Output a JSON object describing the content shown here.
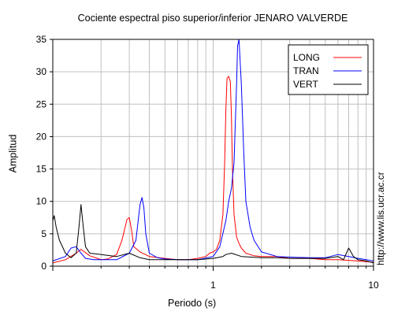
{
  "title": "Cociente espectral piso superior/inferior  JENARO VALVERDE",
  "watermark": "http://www.lis.ucr.ac.cr",
  "chart_data": {
    "type": "line",
    "title": "Cociente espectral piso superior/inferior  JENARO VALVERDE",
    "xlabel": "Periodo (s)",
    "ylabel": "Amplitud",
    "xscale": "log",
    "xlim": [
      0.1,
      10
    ],
    "ylim": [
      0,
      35
    ],
    "xticks": [
      "1",
      "10"
    ],
    "yticks": [
      "0",
      "5",
      "10",
      "15",
      "20",
      "25",
      "30",
      "35"
    ],
    "grid": true,
    "legend_position": "top-right",
    "series": [
      {
        "name": "LONG",
        "color": "#ff0000",
        "x": [
          0.1,
          0.12,
          0.14,
          0.15,
          0.17,
          0.19,
          0.2,
          0.22,
          0.25,
          0.27,
          0.29,
          0.3,
          0.31,
          0.32,
          0.35,
          0.4,
          0.5,
          0.6,
          0.7,
          0.8,
          0.9,
          0.95,
          1.0,
          1.05,
          1.1,
          1.15,
          1.18,
          1.2,
          1.22,
          1.25,
          1.28,
          1.3,
          1.32,
          1.35,
          1.4,
          1.45,
          1.5,
          1.6,
          1.8,
          2.0,
          2.5,
          3.0,
          4.0,
          5.0,
          6.0,
          7.0,
          8.0,
          9.0,
          10.0
        ],
        "values": [
          0.5,
          1.0,
          2.0,
          2.6,
          1.6,
          1.2,
          1.0,
          1.1,
          1.8,
          4.0,
          7.2,
          7.5,
          5.5,
          3.0,
          2.2,
          1.5,
          1.2,
          1.0,
          1.0,
          1.2,
          1.5,
          2.0,
          2.2,
          2.6,
          4.0,
          8.0,
          16.0,
          24.0,
          29.0,
          29.3,
          28.5,
          23.0,
          15.0,
          8.0,
          4.5,
          3.5,
          2.8,
          2.0,
          1.6,
          1.5,
          1.5,
          1.2,
          1.2,
          1.0,
          1.0,
          0.9,
          0.8,
          0.7,
          0.6
        ]
      },
      {
        "name": "TRAN",
        "color": "#0000ff",
        "x": [
          0.1,
          0.12,
          0.13,
          0.14,
          0.15,
          0.16,
          0.18,
          0.2,
          0.25,
          0.3,
          0.33,
          0.35,
          0.36,
          0.37,
          0.38,
          0.4,
          0.45,
          0.5,
          0.6,
          0.8,
          1.0,
          1.1,
          1.2,
          1.25,
          1.3,
          1.35,
          1.4,
          1.42,
          1.45,
          1.5,
          1.55,
          1.6,
          1.7,
          1.8,
          2.0,
          2.5,
          3.0,
          4.0,
          5.0,
          6.0,
          7.0,
          8.0,
          9.0,
          10.0
        ],
        "values": [
          0.8,
          1.5,
          2.8,
          3.0,
          2.0,
          1.2,
          1.0,
          1.0,
          1.0,
          2.0,
          4.0,
          9.5,
          10.6,
          9.0,
          5.0,
          2.0,
          1.3,
          1.1,
          1.0,
          1.0,
          1.5,
          3.0,
          7.0,
          10.0,
          12.0,
          16.0,
          28.0,
          34.0,
          35.0,
          28.0,
          18.0,
          10.0,
          6.0,
          4.0,
          2.2,
          1.5,
          1.4,
          1.3,
          1.3,
          1.8,
          1.5,
          1.2,
          1.0,
          0.8
        ]
      },
      {
        "name": "VERT",
        "color": "#000000",
        "x": [
          0.1,
          0.102,
          0.105,
          0.11,
          0.12,
          0.13,
          0.14,
          0.145,
          0.15,
          0.155,
          0.16,
          0.17,
          0.2,
          0.25,
          0.3,
          0.35,
          0.4,
          0.5,
          0.6,
          0.8,
          1.0,
          1.15,
          1.2,
          1.3,
          1.5,
          2.0,
          2.5,
          3.0,
          4.0,
          5.0,
          6.0,
          6.5,
          7.0,
          7.5,
          8.0,
          9.0,
          10.0
        ],
        "values": [
          7.0,
          7.8,
          6.0,
          4.0,
          2.0,
          1.3,
          2.0,
          5.5,
          9.5,
          6.0,
          3.0,
          2.0,
          1.8,
          1.5,
          2.0,
          1.3,
          1.0,
          1.0,
          1.0,
          1.0,
          1.2,
          1.5,
          1.8,
          2.0,
          1.5,
          1.3,
          1.3,
          1.2,
          1.2,
          1.2,
          1.5,
          1.0,
          2.8,
          1.5,
          1.0,
          0.8,
          0.5
        ]
      }
    ]
  }
}
